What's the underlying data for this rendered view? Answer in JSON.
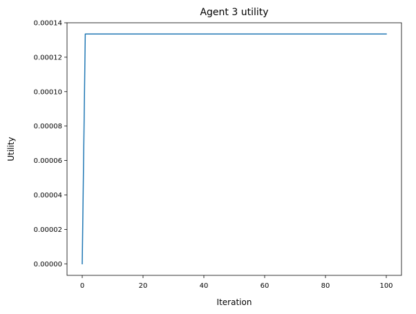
{
  "chart_data": {
    "type": "line",
    "title": "Agent 3 utility",
    "xlabel": "Iteration",
    "ylabel": "Utility",
    "xlim": [
      -5,
      105
    ],
    "ylim": [
      -6.7e-06,
      0.00014
    ],
    "xticks": [
      0,
      20,
      40,
      60,
      80,
      100
    ],
    "xtick_labels": [
      "0",
      "20",
      "40",
      "60",
      "80",
      "100"
    ],
    "yticks": [
      0,
      2e-05,
      4e-05,
      6e-05,
      8e-05,
      0.0001,
      0.00012,
      0.00014
    ],
    "ytick_labels": [
      "0.00000",
      "0.00002",
      "0.00004",
      "0.00006",
      "0.00008",
      "0.00010",
      "0.00012",
      "0.00014"
    ],
    "grid": false,
    "series": [
      {
        "color": "#1f77b4",
        "x": [
          0,
          1,
          100
        ],
        "y": [
          0,
          0.0001335,
          0.0001335
        ]
      }
    ]
  }
}
